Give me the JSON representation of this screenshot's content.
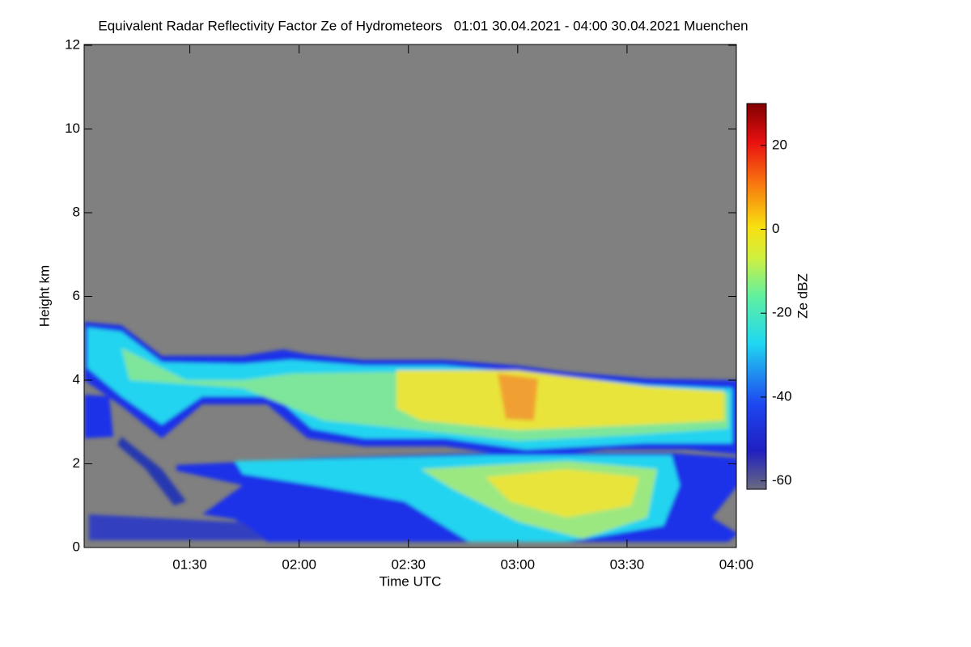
{
  "chart_data": {
    "type": "heatmap",
    "title": "Equivalent Radar Reflectivity Factor Ze of Hydrometeors   01:01 30.04.2021 - 04:00 30.04.2021 Muenchen",
    "xlabel": "Time UTC",
    "ylabel": "Height km",
    "xlim": [
      61,
      240
    ],
    "xticks": [
      {
        "value": 90,
        "label": "01:30"
      },
      {
        "value": 120,
        "label": "02:00"
      },
      {
        "value": 150,
        "label": "02:30"
      },
      {
        "value": 180,
        "label": "03:00"
      },
      {
        "value": 210,
        "label": "03:30"
      },
      {
        "value": 240,
        "label": "04:00"
      }
    ],
    "ylim": [
      0,
      12
    ],
    "yticks": [
      0,
      2,
      4,
      6,
      8,
      10,
      12
    ],
    "colorbar": {
      "label": "Ze dBZ",
      "lim": [
        -62,
        30
      ],
      "ticks": [
        20,
        0,
        -20,
        -40,
        -60
      ]
    }
  }
}
